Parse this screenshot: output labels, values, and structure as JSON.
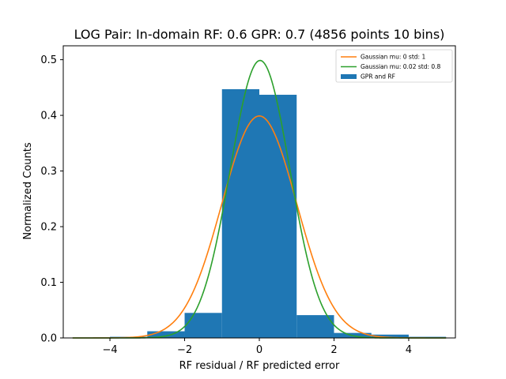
{
  "chart_data": {
    "type": "bar",
    "title": "LOG Pair: In-domain RF: 0.6 GPR: 0.7 (4856 points 10 bins)",
    "xlabel": "RF residual / RF predicted error",
    "ylabel": "Normalized Counts",
    "xlim": [
      -5.25,
      5.25
    ],
    "ylim": [
      0,
      0.525
    ],
    "xticks": [
      -4,
      -2,
      0,
      2,
      4
    ],
    "xtick_labels": [
      "−4",
      "−2",
      "0",
      "2",
      "4"
    ],
    "yticks": [
      0.0,
      0.1,
      0.2,
      0.3,
      0.4,
      0.5
    ],
    "ytick_labels": [
      "0.0",
      "0.1",
      "0.2",
      "0.3",
      "0.4",
      "0.5"
    ],
    "histogram": {
      "name": "GPR and RF",
      "color": "#1f77b4",
      "bin_edges": [
        -5,
        -4,
        -3,
        -2,
        -1,
        0,
        1,
        2,
        3,
        4,
        5
      ],
      "values": [
        0.0005,
        0.002,
        0.012,
        0.045,
        0.447,
        0.437,
        0.041,
        0.009,
        0.006,
        0.002
      ]
    },
    "series": [
      {
        "name": "Gaussian mu: 0 std: 1",
        "type": "line",
        "color": "#ff7f0e",
        "mu": 0,
        "std": 1,
        "x_range": [
          -5,
          5
        ]
      },
      {
        "name": "Gaussian mu: 0.02 std: 0.8",
        "type": "line",
        "color": "#2ca02c",
        "mu": 0.02,
        "std": 0.8,
        "x_range": [
          -5,
          5
        ]
      }
    ],
    "legend": {
      "placement": "top-right",
      "entries": [
        "Gaussian mu: 0 std: 1",
        "Gaussian mu: 0.02 std: 0.8",
        "GPR and RF"
      ]
    },
    "grid": false
  }
}
